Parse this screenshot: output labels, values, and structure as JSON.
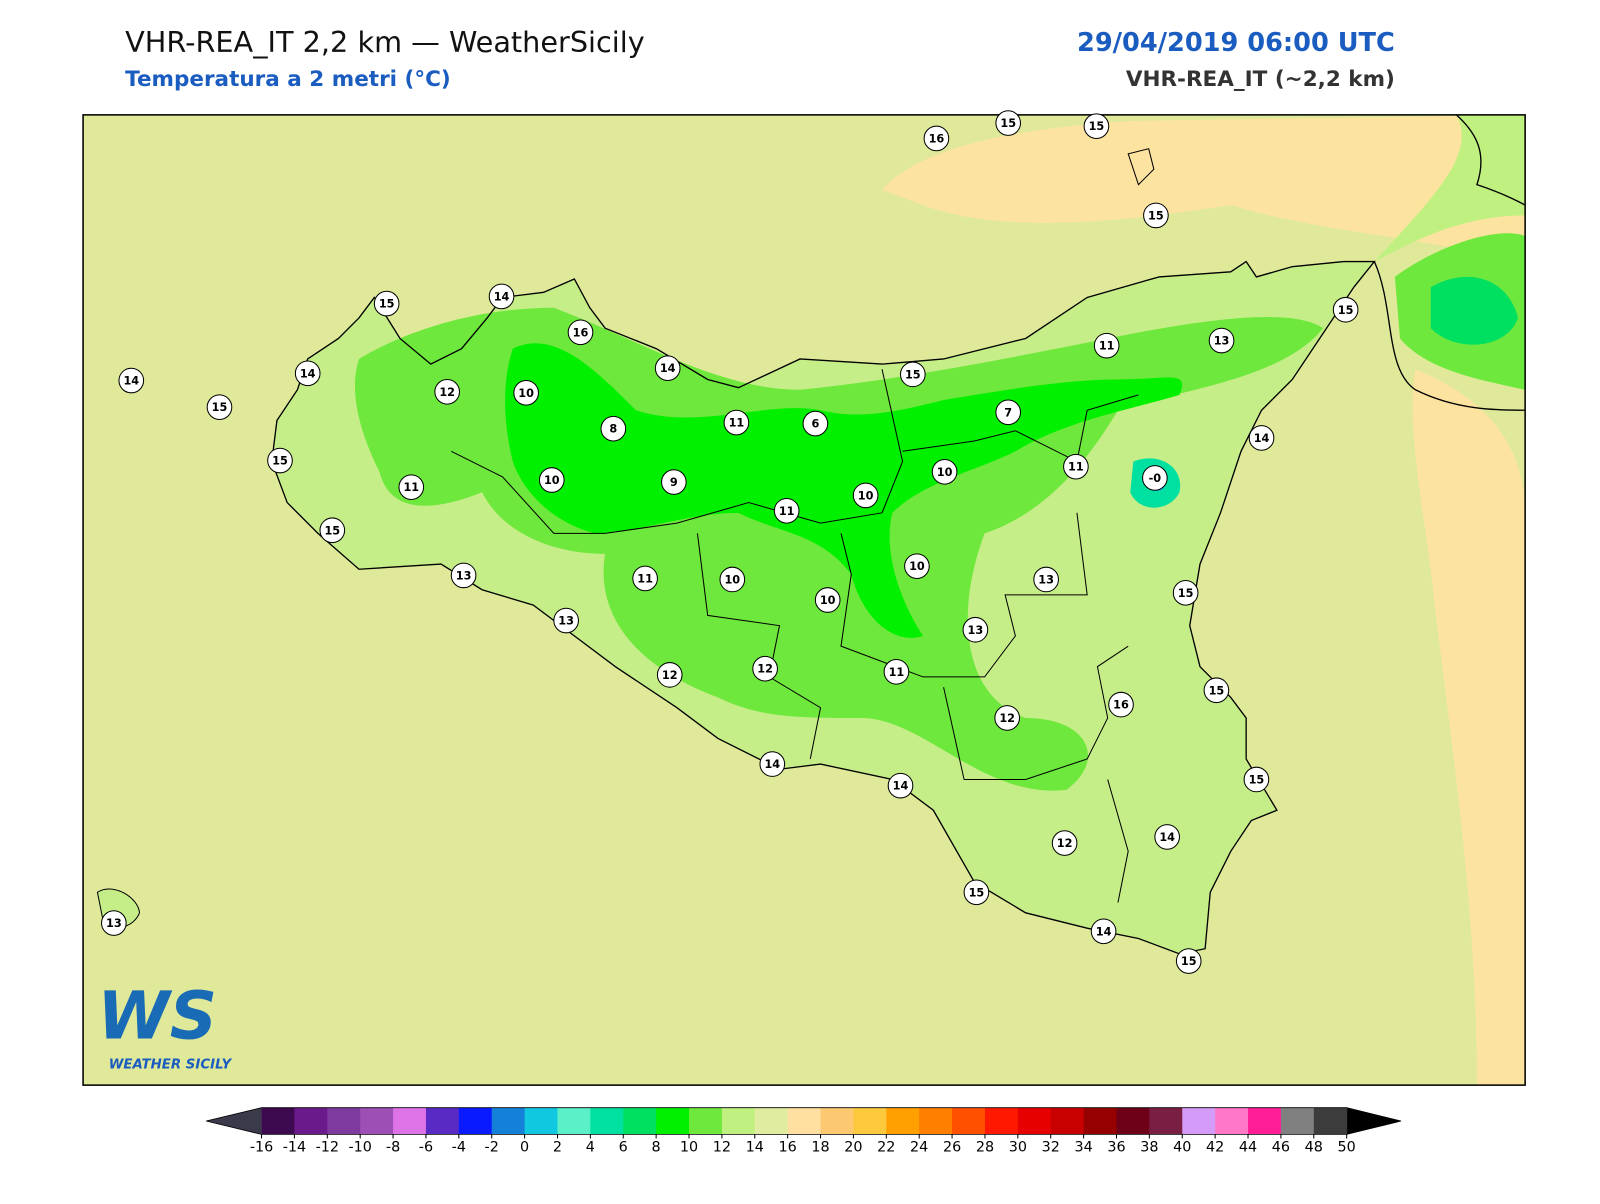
{
  "header": {
    "title": "VHR-REA_IT 2,2 km — WeatherSicily",
    "subtitle": "Temperatura a 2 metri (°C)",
    "datetime": "29/04/2019 06:00 UTC",
    "model": "VHR-REA_IT (~2,2 km)"
  },
  "logo": {
    "mark": "WS",
    "name": "WEATHER SICILY"
  },
  "stations": [
    16,
    15,
    15,
    15,
    15,
    14,
    16,
    14,
    14,
    15,
    12,
    10,
    14,
    15,
    11,
    13,
    15,
    8,
    11,
    6,
    7,
    15,
    11,
    10,
    9,
    10,
    10,
    11,
    14,
    {
      "value": 0,
      "label": "-0"
    },
    11,
    15,
    13,
    11,
    10,
    10,
    10,
    13,
    15,
    13,
    13,
    12,
    12,
    11,
    16,
    15,
    12,
    14,
    14,
    15,
    14,
    12,
    15,
    13,
    14,
    15
  ],
  "colorbar": {
    "ticks": [
      -16,
      -14,
      -12,
      -10,
      -8,
      -6,
      -4,
      -2,
      0,
      2,
      4,
      6,
      8,
      10,
      12,
      14,
      16,
      18,
      20,
      22,
      24,
      26,
      28,
      30,
      32,
      34,
      36,
      38,
      40,
      42,
      44,
      46,
      48,
      50
    ],
    "colors": [
      "#3d0a4f",
      "#6a1a8a",
      "#7e3a9e",
      "#9d4fb5",
      "#de73e8",
      "#5a2bc4",
      "#0a1aff",
      "#1480d8",
      "#10c8e0",
      "#5cf0c8",
      "#00e0a0",
      "#00e060",
      "#00f000",
      "#6ee83c",
      "#c0f080",
      "#e0eca0",
      "#ffe0a0",
      "#fcc870",
      "#fcc83c",
      "#ffa000",
      "#ff7f00",
      "#ff5000",
      "#ff1800",
      "#e60000",
      "#c80000",
      "#960000",
      "#6e0018",
      "#7a1f44",
      "#d49cf8",
      "#ff78c8",
      "#ff1e96",
      "#808080",
      "#3c3c3c"
    ],
    "under_color": "#3a3a4a",
    "over_color": "#000000"
  }
}
